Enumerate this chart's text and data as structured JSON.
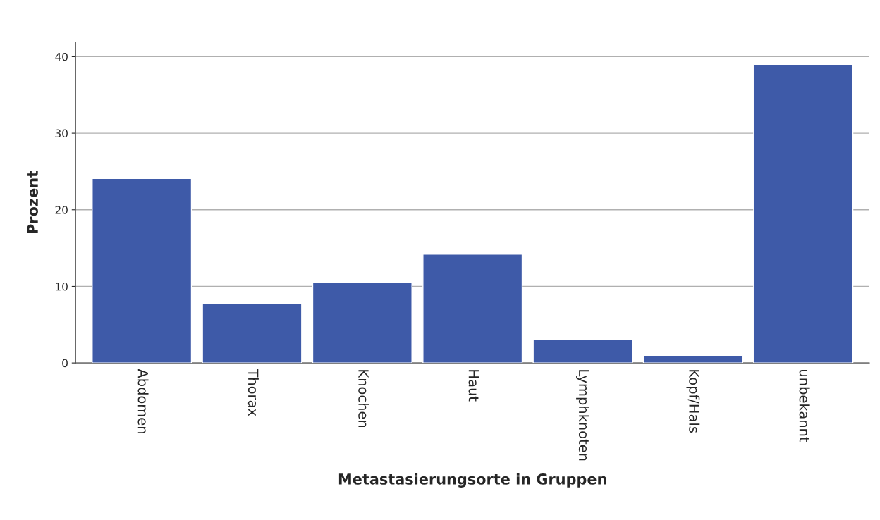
{
  "chart_data": {
    "type": "bar",
    "xlabel": "Metastasierungsorte in Gruppen",
    "ylabel": "Prozent",
    "categories": [
      "Abdomen",
      "Thorax",
      "Knochen",
      "Haut",
      "Lymphknoten",
      "Kopf/Hals",
      "unbekannt"
    ],
    "values": [
      24.1,
      7.8,
      10.5,
      14.2,
      3.1,
      1.0,
      39.0
    ],
    "color": "#3e5aa8",
    "ylim": [
      0,
      41.9
    ],
    "yticks": [
      0,
      10,
      20,
      30,
      40
    ],
    "grid": "y"
  }
}
